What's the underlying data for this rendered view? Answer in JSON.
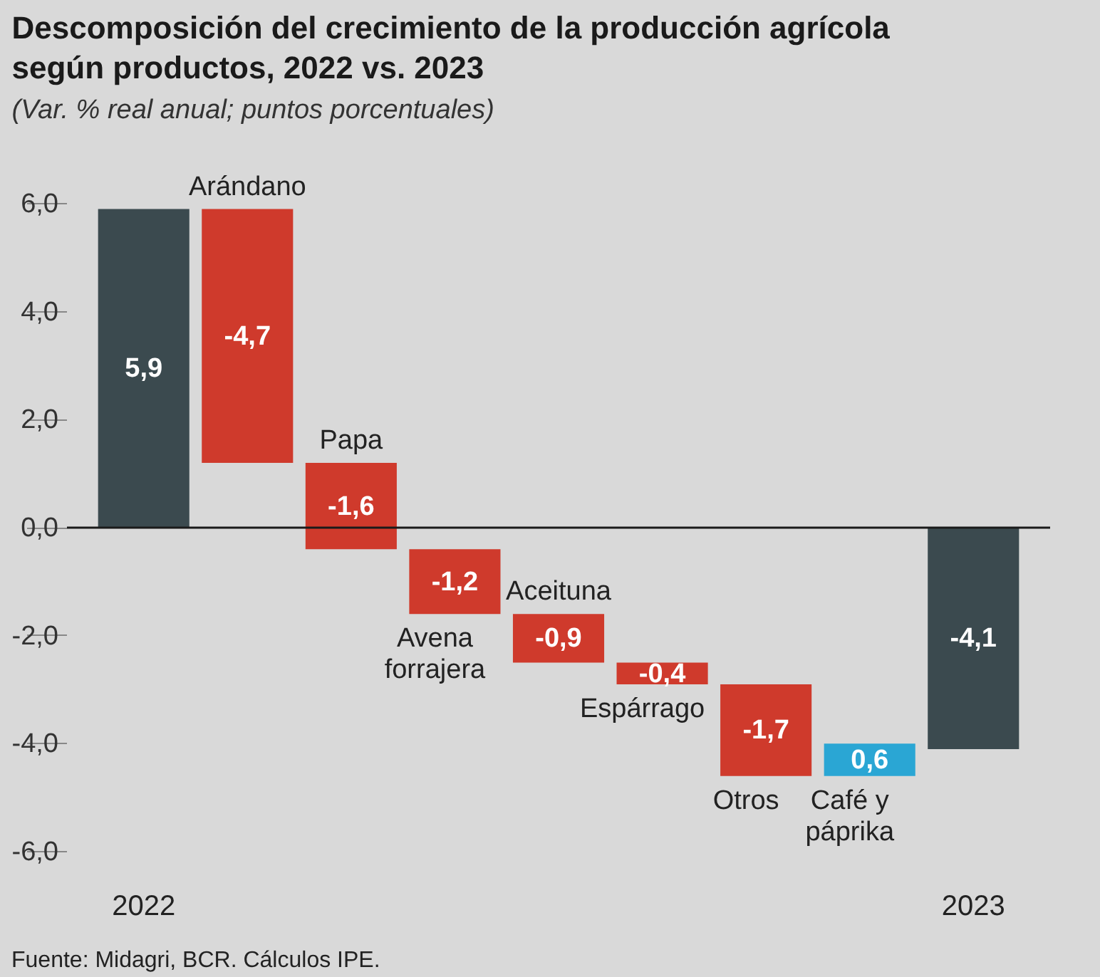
{
  "chart_data": {
    "type": "bar",
    "title": "Descomposición del crecimiento de la producción agrícola según productos, 2022 vs. 2023",
    "subtitle": "(Var. % real anual; puntos porcentuales)",
    "annotations": [
      "Fuente: Midagri, BCR. Cálculos IPE."
    ],
    "categories": [
      "2022",
      "Arándano",
      "Papa",
      "Avena forrajera",
      "Aceituna",
      "Espárrago",
      "Otros",
      "Café y páprika",
      "2023"
    ],
    "values": [
      5.9,
      -4.7,
      -1.6,
      -1.2,
      -0.9,
      -0.4,
      -1.7,
      0.6,
      -4.1
    ],
    "base": [
      0,
      5.9,
      1.2,
      -0.4,
      -1.6,
      -2.5,
      -2.9,
      -4.6,
      0
    ],
    "colors": [
      "#3b4a4f",
      "#cf3a2c",
      "#cf3a2c",
      "#cf3a2c",
      "#cf3a2c",
      "#cf3a2c",
      "#cf3a2c",
      "#2aa6d4",
      "#3b4a4f"
    ],
    "value_labels": [
      "5,9",
      "-4,7",
      "-1,6",
      "-1,2",
      "-0,9",
      "-0,4",
      "-1,7",
      "0,6",
      "-4,1"
    ],
    "ylim": [
      -6,
      6
    ],
    "yticks": [
      {
        "value": -6,
        "label": "-6,0"
      },
      {
        "value": -4,
        "label": "-4,0"
      },
      {
        "value": -2,
        "label": "-2,0"
      },
      {
        "value": 0,
        "label": "0,0"
      },
      {
        "value": 2,
        "label": "2,0"
      },
      {
        "value": 4,
        "label": "4,0"
      },
      {
        "value": 6,
        "label": "6,0"
      }
    ],
    "ref_lines": [
      {
        "axis": "y",
        "value": 0,
        "color": "#1a1a1a"
      }
    ]
  }
}
